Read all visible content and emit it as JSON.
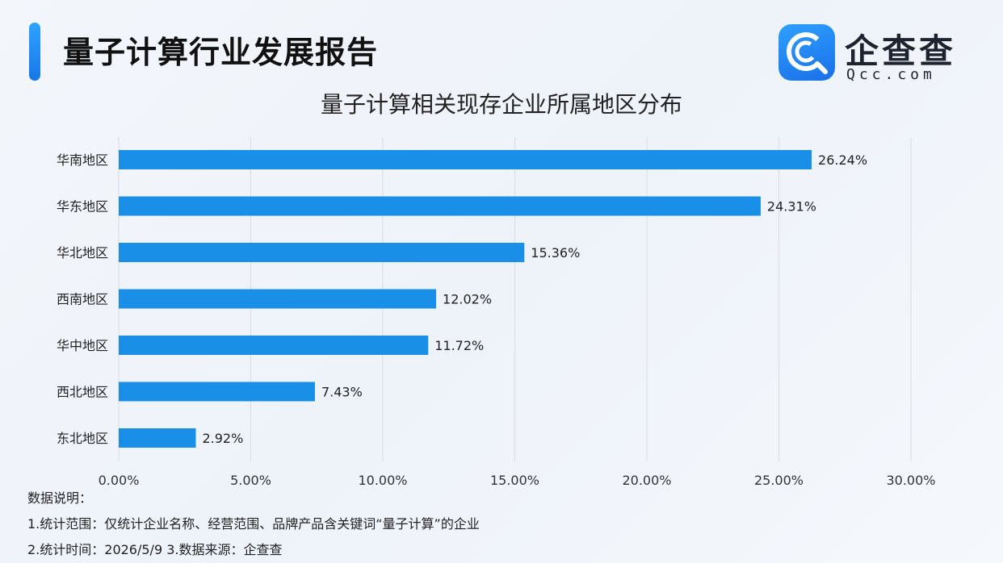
{
  "header": {
    "report_title": "量子计算行业发展报告",
    "logo_name": "企查查",
    "logo_domain": "Qcc.com",
    "logo_icon": "qcc-logo-icon"
  },
  "colors": {
    "bar": "#1a8fe8",
    "grid": "#d9dde3",
    "accent": "#1677e6"
  },
  "chart_data": {
    "type": "bar",
    "orientation": "horizontal",
    "title": "量子计算相关现存企业所属地区分布",
    "categories": [
      "华南地区",
      "华东地区",
      "华北地区",
      "西南地区",
      "华中地区",
      "西北地区",
      "东北地区"
    ],
    "values": [
      26.24,
      24.31,
      15.36,
      12.02,
      11.72,
      7.43,
      2.92
    ],
    "value_labels": [
      "26.24%",
      "24.31%",
      "15.36%",
      "12.02%",
      "11.72%",
      "7.43%",
      "2.92%"
    ],
    "xlim": [
      0,
      30
    ],
    "xticks": [
      0,
      5,
      10,
      15,
      20,
      25,
      30
    ],
    "xtick_labels": [
      "0.00%",
      "5.00%",
      "10.00%",
      "15.00%",
      "20.00%",
      "25.00%",
      "30.00%"
    ],
    "grid": true,
    "legend": "none"
  },
  "notes": {
    "heading": "数据说明：",
    "line1": "1.统计范围：仅统计企业名称、经营范围、品牌产品含关键词“量子计算”的企业",
    "line2": "2.统计时间：2026/5/9  3.数据来源：企查查"
  }
}
